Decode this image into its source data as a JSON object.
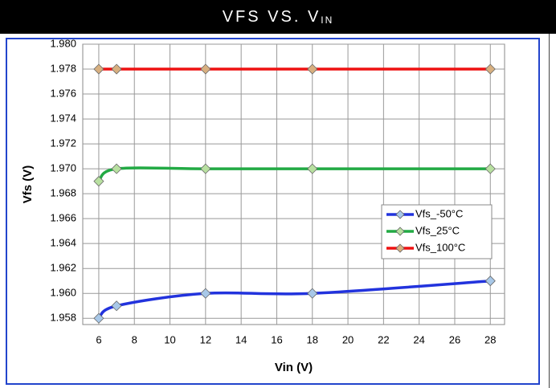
{
  "chart_data": {
    "type": "line",
    "title": "VFS VS. V",
    "title_subscript": "IN",
    "x_label": "Vin (V)",
    "y_label": "Vfs (V)",
    "x": [
      6,
      7,
      12,
      18,
      28
    ],
    "series": [
      {
        "name": "Vfs_-50°C",
        "color": "#2233dd",
        "marker_color": "#a8c8e8",
        "values": [
          1.958,
          1.959,
          1.96,
          1.96,
          1.961
        ]
      },
      {
        "name": "Vfs_25°C",
        "color": "#22aa44",
        "marker_color": "#b8e0a0",
        "values": [
          1.969,
          1.97,
          1.97,
          1.97,
          1.97
        ]
      },
      {
        "name": "Vfs_100°C",
        "color": "#ee1111",
        "marker_color": "#d8b080",
        "values": [
          1.978,
          1.978,
          1.978,
          1.978,
          1.978
        ]
      }
    ],
    "xlim": [
      5.1,
      28.8
    ],
    "xticks": [
      6,
      8,
      10,
      12,
      14,
      16,
      18,
      20,
      22,
      24,
      26,
      28
    ],
    "ylim": [
      1.9575,
      1.98
    ],
    "yticks": [
      {
        "value": 1.958,
        "label": "1.958"
      },
      {
        "value": 1.96,
        "label": "1.960"
      },
      {
        "value": 1.962,
        "label": "1.962"
      },
      {
        "value": 1.964,
        "label": "1.964"
      },
      {
        "value": 1.966,
        "label": "1.966"
      },
      {
        "value": 1.968,
        "label": "1.968"
      },
      {
        "value": 1.97,
        "label": "1.970"
      },
      {
        "value": 1.972,
        "label": "1.972"
      },
      {
        "value": 1.974,
        "label": "1.974"
      },
      {
        "value": 1.976,
        "label": "1.976"
      },
      {
        "value": 1.978,
        "label": "1.978"
      },
      {
        "value": 1.98,
        "label": "1.980"
      }
    ],
    "grid": true,
    "legend": "right"
  }
}
